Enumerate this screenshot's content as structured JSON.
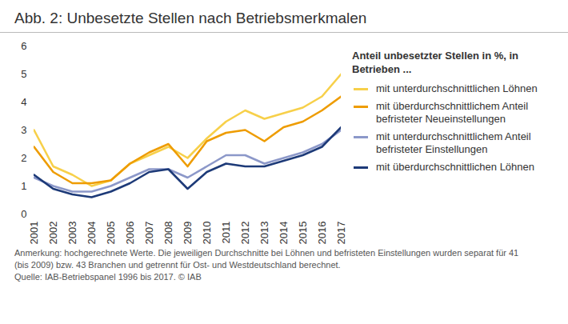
{
  "chart_data": {
    "type": "line",
    "title": "Abb. 2:  Unbesetzte Stellen nach Betriebsmerkmalen",
    "legend_title": "Anteil unbesetzter Stellen in %, in Betrieben ...",
    "note": "Anmerkung: hochgerechnete Werte. Die jeweiligen Durchschnitte bei Löhnen und befristeten Einstellungen wurden separat für 41 (bis 2009) bzw. 43 Branchen und getrennt für Ost- und Westdeutschland berechnet.",
    "source": "Quelle: IAB-Betriebspanel 1996 bis 2017. © IAB",
    "x": [
      2001,
      2002,
      2003,
      2004,
      2005,
      2006,
      2007,
      2008,
      2009,
      2010,
      2011,
      2012,
      2013,
      2014,
      2015,
      2016,
      2017
    ],
    "xlim": [
      2001,
      2017
    ],
    "xticks": [
      2001,
      2002,
      2003,
      2004,
      2005,
      2006,
      2007,
      2008,
      2009,
      2010,
      2011,
      2012,
      2013,
      2014,
      2015,
      2016,
      2017
    ],
    "ylim": [
      0,
      6
    ],
    "yticks": [
      0,
      1,
      2,
      3,
      4,
      5,
      6
    ],
    "grid": false,
    "legend": "right",
    "series": [
      {
        "name": "mit unterdurchschnittlichen Löhnen",
        "color": "#f7d04a",
        "values": [
          3.0,
          1.7,
          1.4,
          1.0,
          1.2,
          1.8,
          2.1,
          2.4,
          2.0,
          2.7,
          3.3,
          3.7,
          3.4,
          3.6,
          3.8,
          4.2,
          5.0
        ]
      },
      {
        "name": "mit überdurchschnittlichem Anteil befristeter Neueinstellungen",
        "color": "#ee9c00",
        "values": [
          2.4,
          1.5,
          1.1,
          1.1,
          1.2,
          1.8,
          2.2,
          2.5,
          1.7,
          2.6,
          2.9,
          3.0,
          2.6,
          3.1,
          3.3,
          3.7,
          4.2
        ]
      },
      {
        "name": "mit unterdurchschnittlichem Anteil befristeter Einstellungen",
        "color": "#8c98c9",
        "values": [
          1.3,
          1.0,
          0.8,
          0.8,
          1.0,
          1.3,
          1.6,
          1.6,
          1.3,
          1.7,
          2.1,
          2.1,
          1.8,
          2.0,
          2.2,
          2.5,
          3.0
        ]
      },
      {
        "name": "mit überdurchschnittlichen Löhnen",
        "color": "#1d3a78",
        "values": [
          1.4,
          0.9,
          0.7,
          0.6,
          0.8,
          1.1,
          1.5,
          1.6,
          0.9,
          1.5,
          1.8,
          1.7,
          1.7,
          1.9,
          2.1,
          2.4,
          3.1
        ]
      }
    ]
  }
}
